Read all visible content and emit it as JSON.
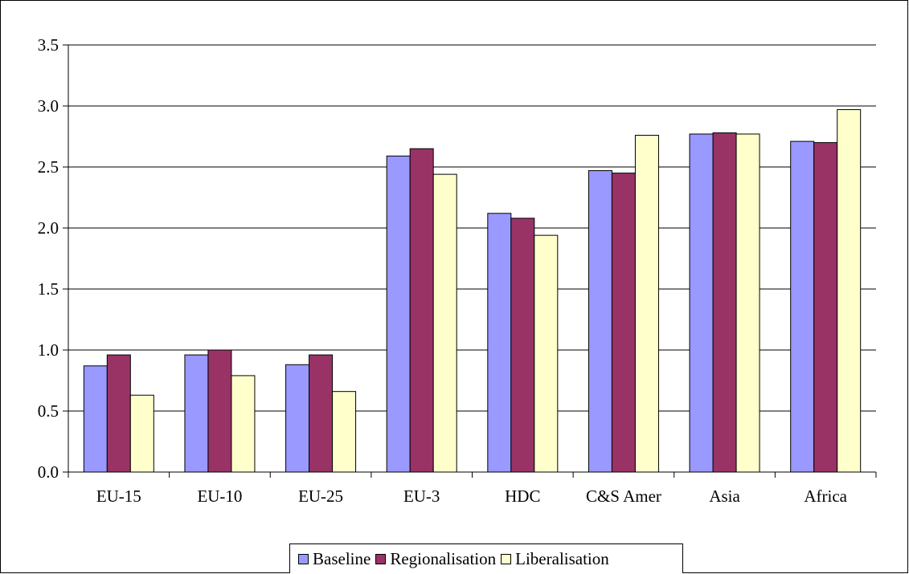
{
  "chart_data": {
    "type": "bar",
    "title": "",
    "xlabel": "",
    "ylabel": "",
    "ylim": [
      0,
      3.5
    ],
    "yticks": [
      "0.0",
      "0.5",
      "1.0",
      "1.5",
      "2.0",
      "2.5",
      "3.0",
      "3.5"
    ],
    "ytick_values": [
      0,
      0.5,
      1.0,
      1.5,
      2.0,
      2.5,
      3.0,
      3.5
    ],
    "grid": "horizontal",
    "legend_position": "bottom",
    "categories": [
      "EU-15",
      "EU-10",
      "EU-25",
      "EU-3",
      "HDC",
      "C&S Amer",
      "Asia",
      "Africa"
    ],
    "series": [
      {
        "name": "Baseline",
        "color": "#9999ff",
        "values": [
          0.87,
          0.96,
          0.88,
          2.59,
          2.12,
          2.47,
          2.77,
          2.71
        ]
      },
      {
        "name": "Regionalisation",
        "color": "#993366",
        "values": [
          0.96,
          1.0,
          0.96,
          2.65,
          2.08,
          2.45,
          2.78,
          2.7
        ]
      },
      {
        "name": "Liberalisation",
        "color": "#ffffcc",
        "values": [
          0.63,
          0.79,
          0.66,
          2.44,
          1.94,
          2.76,
          2.77,
          2.97
        ]
      }
    ]
  }
}
